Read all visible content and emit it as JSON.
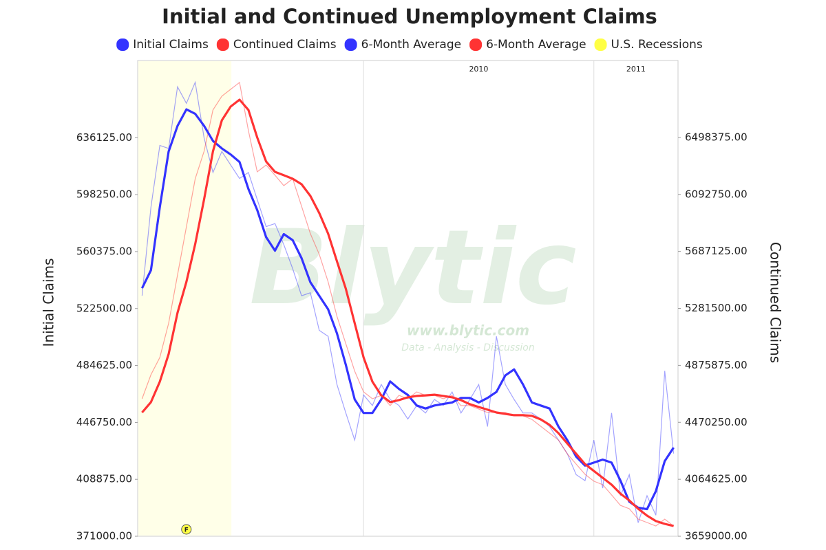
{
  "chart_data": {
    "type": "line",
    "title": "Initial and Continued Unemployment Claims",
    "ylabel": "Initial Claims",
    "y2label": "Continued Claims",
    "legend": "top",
    "ygrid": false,
    "xgrid": true,
    "categories": [
      null,
      null,
      null,
      null,
      null,
      null,
      null,
      null,
      null,
      null,
      null,
      null,
      null,
      null,
      null,
      null,
      null,
      null,
      null,
      null,
      null,
      null,
      null,
      null,
      null,
      "2010",
      null,
      null,
      null,
      null,
      null,
      null,
      null,
      null,
      null,
      null,
      null,
      null,
      null,
      null,
      null,
      null,
      null,
      null,
      null,
      null,
      null,
      null,
      null,
      null,
      null,
      "2011",
      null,
      null,
      null,
      null,
      null,
      null,
      null,
      null,
      null
    ],
    "ylim": [
      371000,
      687500
    ],
    "yticks": [
      {
        "value": 371000,
        "label": "371000.00"
      },
      {
        "value": 408875,
        "label": "408875.00"
      },
      {
        "value": 446750,
        "label": "446750.00"
      },
      {
        "value": 484625,
        "label": "484625.00"
      },
      {
        "value": 522500,
        "label": "522500.00"
      },
      {
        "value": 560375,
        "label": "560375.00"
      },
      {
        "value": 598250,
        "label": "598250.00"
      },
      {
        "value": 636125,
        "label": "636125.00"
      }
    ],
    "y2lim": [
      3659000,
      7046000
    ],
    "y2ticks": [
      {
        "value": 3659000,
        "label": "3659000.00"
      },
      {
        "value": 4064625,
        "label": "4064625.00"
      },
      {
        "value": 4470250,
        "label": "4470250.00"
      },
      {
        "value": 4875875,
        "label": "4875875.00"
      },
      {
        "value": 5281500,
        "label": "5281500.00"
      },
      {
        "value": 5687125,
        "label": "5687125.00"
      },
      {
        "value": 6092750,
        "label": "6092750.00"
      },
      {
        "value": 6498375,
        "label": "6498375.00"
      }
    ],
    "series": [
      {
        "name": "Initial Claims",
        "color": "#3333ff",
        "values": [
          531000,
          590000,
          631000,
          629000,
          670000,
          659000,
          673000,
          636000,
          613000,
          627000,
          618000,
          609000,
          613000,
          595000,
          577000,
          579000,
          565000,
          549000,
          531000,
          533000,
          508000,
          504000,
          472000,
          453000,
          435000,
          465000,
          458000,
          472000,
          462000,
          458000,
          449000,
          458000,
          453000,
          462000,
          458000,
          467000,
          453000,
          462000,
          472000,
          444000,
          504000,
          472000,
          462000,
          453000,
          453000,
          449000,
          444000,
          435000,
          426000,
          412000,
          408000,
          435000,
          403000,
          453000,
          398000,
          412000,
          380000,
          398000,
          385000,
          481000,
          426000
        ]
      },
      {
        "name": "Continued Claims",
        "color": "#ff3333",
        "axis": "y2",
        "values": [
          4638000,
          4809000,
          4932000,
          5176000,
          5519000,
          5862000,
          6204000,
          6400000,
          6694000,
          6792000,
          6841000,
          6890000,
          6547000,
          6253000,
          6302000,
          6229000,
          6155000,
          6204000,
          6009000,
          5813000,
          5666000,
          5470000,
          5225000,
          5030000,
          4834000,
          4687000,
          4638000,
          4662000,
          4589000,
          4662000,
          4638000,
          4687000,
          4662000,
          4662000,
          4638000,
          4662000,
          4589000,
          4589000,
          4565000,
          4540000,
          4540000,
          4540000,
          4516000,
          4516000,
          4491000,
          4442000,
          4393000,
          4344000,
          4246000,
          4173000,
          4100000,
          4051000,
          4026000,
          3953000,
          3879000,
          3855000,
          3781000,
          3757000,
          3732000,
          3781000,
          3732000
        ]
      },
      {
        "name": "6-Month Average",
        "color": "#3333ff",
        "values": [
          536000,
          548000,
          590000,
          627000,
          644000,
          655000,
          652000,
          644000,
          634000,
          629000,
          625000,
          620000,
          602000,
          588000,
          570000,
          561000,
          572000,
          568000,
          556000,
          540000,
          531000,
          522000,
          506000,
          485000,
          462000,
          453000,
          453000,
          462000,
          474000,
          469000,
          465000,
          458000,
          456000,
          458000,
          459000,
          460000,
          463000,
          463000,
          460000,
          463000,
          467000,
          478000,
          482000,
          472000,
          460000,
          458000,
          456000,
          444000,
          435000,
          424000,
          418000,
          420000,
          422000,
          420000,
          408000,
          394000,
          390000,
          389000,
          401000,
          421000,
          430000
        ]
      },
      {
        "name": "6-Month Average",
        "color": "#ff3333",
        "axis": "y2",
        "values": [
          4540000,
          4614000,
          4760000,
          4956000,
          5250000,
          5470000,
          5739000,
          6058000,
          6400000,
          6620000,
          6718000,
          6767000,
          6694000,
          6498000,
          6327000,
          6253000,
          6229000,
          6204000,
          6165000,
          6082000,
          5960000,
          5813000,
          5617000,
          5421000,
          5176000,
          4932000,
          4760000,
          4662000,
          4614000,
          4628000,
          4648000,
          4658000,
          4662000,
          4667000,
          4658000,
          4648000,
          4628000,
          4599000,
          4579000,
          4560000,
          4540000,
          4530000,
          4521000,
          4521000,
          4516000,
          4491000,
          4452000,
          4393000,
          4320000,
          4246000,
          4173000,
          4124000,
          4075000,
          4026000,
          3962000,
          3914000,
          3855000,
          3806000,
          3767000,
          3747000,
          3732000
        ]
      }
    ],
    "recessions": [
      {
        "name": "U.S. Recessions",
        "color": "#ffff44",
        "from": 0,
        "to": 10
      }
    ],
    "annotations": [
      {
        "text": "F",
        "category": 5
      }
    ],
    "watermark": {
      "brand": "Blytic",
      "url": "www.blytic.com",
      "tagline": "Data - Analysis - Discussion"
    }
  }
}
